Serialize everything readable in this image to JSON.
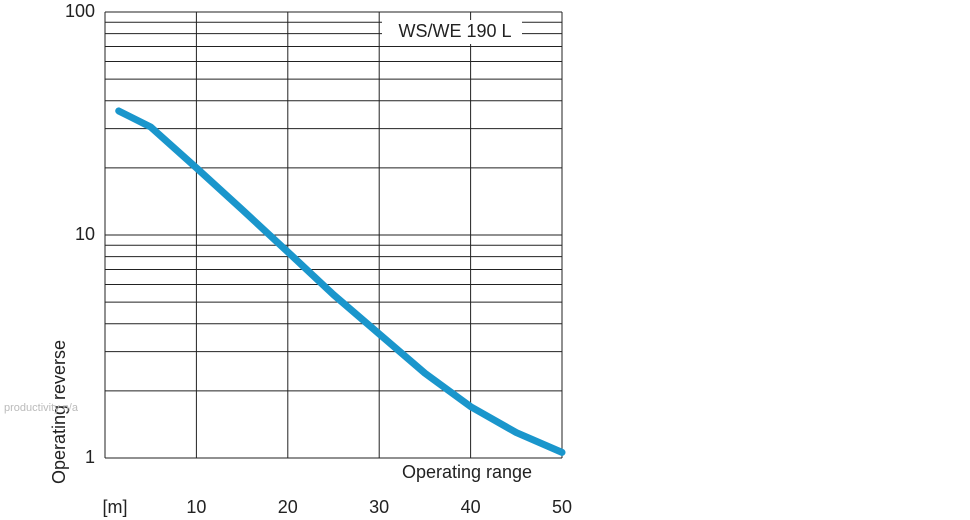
{
  "chart_data": {
    "type": "line",
    "log_y": true,
    "grid": true,
    "x_label": "Operating range",
    "y_label": "Operating reverse",
    "watermark": "productivity n/a",
    "xlim": [
      0,
      50
    ],
    "xticks": [
      {
        "value": 0,
        "label": "[m]"
      },
      10,
      20,
      30,
      40,
      50
    ],
    "ylim": [
      1,
      100
    ],
    "yticks": [
      1,
      10,
      100
    ],
    "yminorticks": [
      2,
      3,
      4,
      5,
      6,
      7,
      8,
      9,
      20,
      30,
      40,
      50,
      60,
      70,
      80,
      90
    ],
    "series": [
      {
        "name": "WS/WE 190 L",
        "color": "#1a96cc",
        "x": [
          1.5,
          5,
          10,
          15,
          20,
          25,
          30,
          35,
          40,
          45,
          50
        ],
        "values": [
          36,
          30.5,
          20,
          13,
          8.4,
          5.4,
          3.6,
          2.4,
          1.7,
          1.3,
          1.06
        ]
      }
    ]
  }
}
